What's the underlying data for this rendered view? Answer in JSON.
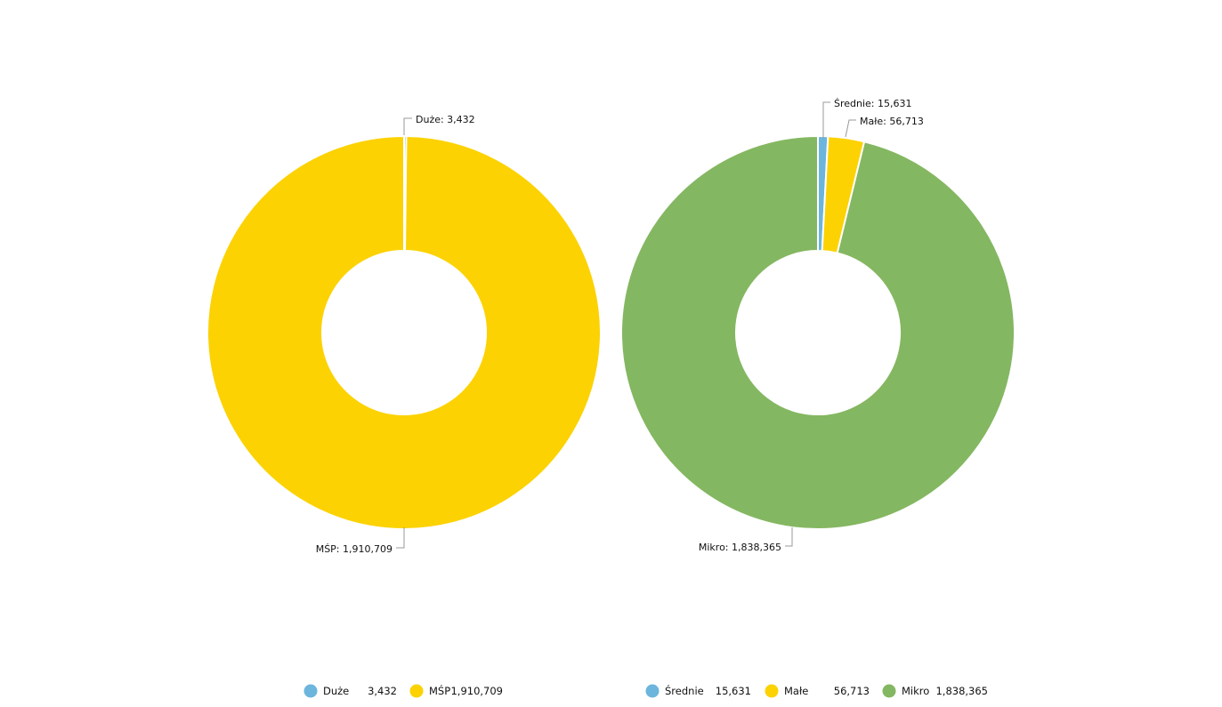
{
  "chart_data": [
    {
      "type": "pie",
      "slices": [
        {
          "name": "Duże",
          "value": 3432,
          "label": "Duże: 3,432",
          "legend_value": "3,432",
          "color": "#6cb5dc"
        },
        {
          "name": "MŚP",
          "value": 1910709,
          "label": "MŚP: 1,910,709",
          "legend_value": "1,910,709",
          "color": "#fcd202"
        }
      ],
      "legend_position": "bottom"
    },
    {
      "type": "pie",
      "slices": [
        {
          "name": "Średnie",
          "value": 15631,
          "label": "Średnie: 15,631",
          "legend_value": "15,631",
          "color": "#6cb5dc"
        },
        {
          "name": "Małe",
          "value": 56713,
          "label": "Małe: 56,713",
          "legend_value": "56,713",
          "color": "#fcd202"
        },
        {
          "name": "Mikro",
          "value": 1838365,
          "label": "Mikro: 1,838,365",
          "legend_value": "1,838,365",
          "color": "#84b761"
        }
      ],
      "legend_position": "bottom"
    }
  ]
}
